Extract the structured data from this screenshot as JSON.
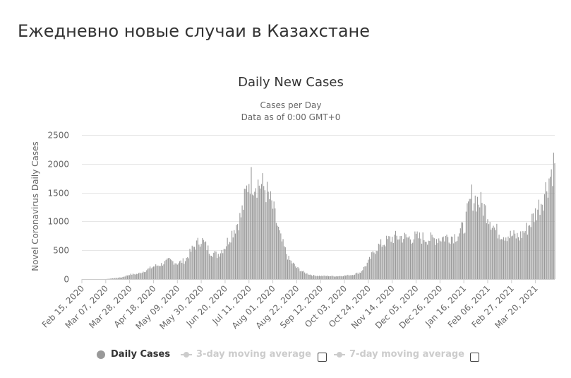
{
  "page": {
    "heading": "Ежедневно новые случаи в Казахстане"
  },
  "legend": {
    "daily_cases": "Daily Cases",
    "avg3": "3-day moving average",
    "avg7": "7-day moving average"
  },
  "colors": {
    "bar": "#999999",
    "grid": "#e6e6e6",
    "legend_inactive": "#cccccc"
  },
  "chart_data": {
    "type": "bar",
    "title": "Daily New Cases",
    "subtitle_lines": [
      "Cases per Day",
      "Data as of 0:00 GMT+0"
    ],
    "ylabel": "Novel Coronavirus Daily Cases",
    "xlabel": "",
    "ylim": [
      0,
      2500
    ],
    "yticks": [
      0,
      500,
      1000,
      1500,
      2000,
      2500
    ],
    "grid": true,
    "legend_position": "bottom",
    "x_range": [
      "Feb 15, 2020",
      "Apr 06, 2021"
    ],
    "xticks": [
      "Feb 15, 2020",
      "Mar 07, 2020",
      "Mar 28, 2020",
      "Apr 18, 2020",
      "May 09, 2020",
      "May 30, 2020",
      "Jun 20, 2020",
      "Jul 11, 2020",
      "Aug 01, 2020",
      "Aug 22, 2020",
      "Sep 12, 2020",
      "Oct 03, 2020",
      "Oct 24, 2020",
      "Nov 14, 2020",
      "Dec 05, 2020",
      "Dec 26, 2020",
      "Jan 16, 2021",
      "Feb 06, 2021",
      "Feb 27, 2021",
      "Mar 20, 2021"
    ],
    "series": [
      {
        "name": "Daily Cases",
        "weekly_points": [
          {
            "date": "Feb 15, 2020",
            "value": 0
          },
          {
            "date": "Mar 07, 2020",
            "value": 0
          },
          {
            "date": "Mar 14, 2020",
            "value": 15
          },
          {
            "date": "Mar 21, 2020",
            "value": 30
          },
          {
            "date": "Mar 28, 2020",
            "value": 80
          },
          {
            "date": "Apr 04, 2020",
            "value": 90
          },
          {
            "date": "Apr 11, 2020",
            "value": 150
          },
          {
            "date": "Apr 18, 2020",
            "value": 220
          },
          {
            "date": "Apr 25, 2020",
            "value": 260
          },
          {
            "date": "May 02, 2020",
            "value": 330
          },
          {
            "date": "May 09, 2020",
            "value": 280
          },
          {
            "date": "May 16, 2020",
            "value": 330
          },
          {
            "date": "May 23, 2020",
            "value": 550
          },
          {
            "date": "May 30, 2020",
            "value": 700
          },
          {
            "date": "Jun 06, 2020",
            "value": 500
          },
          {
            "date": "Jun 13, 2020",
            "value": 420
          },
          {
            "date": "Jun 20, 2020",
            "value": 580
          },
          {
            "date": "Jun 27, 2020",
            "value": 850
          },
          {
            "date": "Jul 04, 2020",
            "value": 1100
          },
          {
            "date": "Jul 11, 2020",
            "value": 1750
          },
          {
            "date": "Jul 18, 2020",
            "value": 1700
          },
          {
            "date": "Jul 25, 2020",
            "value": 1600
          },
          {
            "date": "Aug 01, 2020",
            "value": 1250
          },
          {
            "date": "Aug 08, 2020",
            "value": 700
          },
          {
            "date": "Aug 15, 2020",
            "value": 350
          },
          {
            "date": "Aug 22, 2020",
            "value": 200
          },
          {
            "date": "Aug 29, 2020",
            "value": 110
          },
          {
            "date": "Sep 05, 2020",
            "value": 65
          },
          {
            "date": "Sep 12, 2020",
            "value": 55
          },
          {
            "date": "Sep 19, 2020",
            "value": 55
          },
          {
            "date": "Sep 26, 2020",
            "value": 50
          },
          {
            "date": "Oct 03, 2020",
            "value": 60
          },
          {
            "date": "Oct 10, 2020",
            "value": 75
          },
          {
            "date": "Oct 17, 2020",
            "value": 120
          },
          {
            "date": "Oct 24, 2020",
            "value": 300
          },
          {
            "date": "Oct 31, 2020",
            "value": 550
          },
          {
            "date": "Nov 07, 2020",
            "value": 640
          },
          {
            "date": "Nov 14, 2020",
            "value": 720
          },
          {
            "date": "Nov 21, 2020",
            "value": 740
          },
          {
            "date": "Nov 28, 2020",
            "value": 720
          },
          {
            "date": "Dec 05, 2020",
            "value": 730
          },
          {
            "date": "Dec 12, 2020",
            "value": 720
          },
          {
            "date": "Dec 19, 2020",
            "value": 700
          },
          {
            "date": "Dec 26, 2020",
            "value": 720
          },
          {
            "date": "Jan 02, 2021",
            "value": 740
          },
          {
            "date": "Jan 09, 2021",
            "value": 760
          },
          {
            "date": "Jan 16, 2021",
            "value": 900
          },
          {
            "date": "Jan 23, 2021",
            "value": 1450
          },
          {
            "date": "Jan 30, 2021",
            "value": 1350
          },
          {
            "date": "Feb 06, 2021",
            "value": 1150
          },
          {
            "date": "Feb 13, 2021",
            "value": 850
          },
          {
            "date": "Feb 20, 2021",
            "value": 780
          },
          {
            "date": "Feb 27, 2021",
            "value": 760
          },
          {
            "date": "Mar 06, 2021",
            "value": 740
          },
          {
            "date": "Mar 13, 2021",
            "value": 900
          },
          {
            "date": "Mar 20, 2021",
            "value": 1150
          },
          {
            "date": "Mar 27, 2021",
            "value": 1450
          },
          {
            "date": "Apr 06, 2021",
            "value": 2080
          }
        ]
      }
    ]
  }
}
